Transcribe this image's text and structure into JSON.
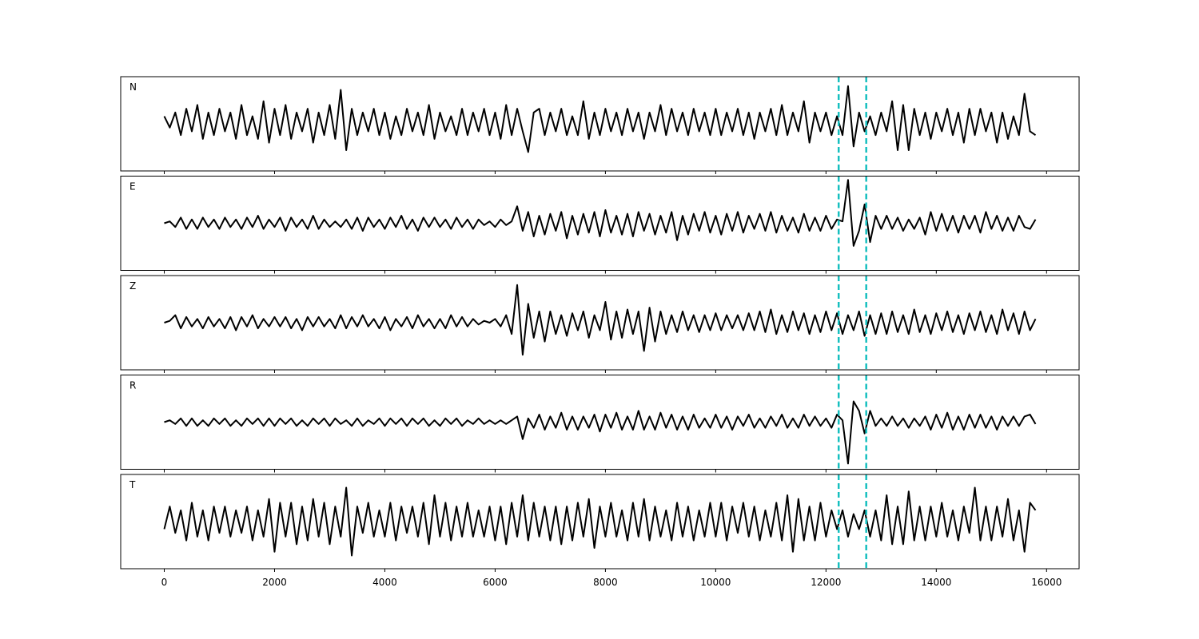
{
  "chart_data": {
    "type": "line",
    "x": [
      0,
      100,
      200,
      300,
      400,
      500,
      600,
      700,
      800,
      900,
      1000,
      1100,
      1200,
      1300,
      1400,
      1500,
      1600,
      1700,
      1800,
      1900,
      2000,
      2100,
      2200,
      2300,
      2400,
      2500,
      2600,
      2700,
      2800,
      2900,
      3000,
      3100,
      3200,
      3300,
      3400,
      3500,
      3600,
      3700,
      3800,
      3900,
      4000,
      4100,
      4200,
      4300,
      4400,
      4500,
      4600,
      4700,
      4800,
      4900,
      5000,
      5100,
      5200,
      5300,
      5400,
      5500,
      5600,
      5700,
      5800,
      5900,
      6000,
      6100,
      6200,
      6300,
      6400,
      6500,
      6600,
      6700,
      6800,
      6900,
      7000,
      7100,
      7200,
      7300,
      7400,
      7500,
      7600,
      7700,
      7800,
      7900,
      8000,
      8100,
      8200,
      8300,
      8400,
      8500,
      8600,
      8700,
      8800,
      8900,
      9000,
      9100,
      9200,
      9300,
      9400,
      9500,
      9600,
      9700,
      9800,
      9900,
      10000,
      10100,
      10200,
      10300,
      10400,
      10500,
      10600,
      10700,
      10800,
      10900,
      11000,
      11100,
      11200,
      11300,
      11400,
      11500,
      11600,
      11700,
      11800,
      11900,
      12000,
      12100,
      12200,
      12300,
      12400,
      12500,
      12600,
      12700,
      12800,
      12900,
      13000,
      13100,
      13200,
      13300,
      13400,
      13500,
      13600,
      13700,
      13800,
      13900,
      14000,
      14100,
      14200,
      14300,
      14400,
      14500,
      14600,
      14700,
      14800,
      14900,
      15000,
      15100,
      15200,
      15300,
      15400,
      15500,
      15600,
      15700,
      15800
    ],
    "xlim": [
      -790,
      16590
    ],
    "xticks": [
      0,
      2000,
      4000,
      6000,
      8000,
      10000,
      12000,
      14000,
      16000
    ],
    "ylim": [
      -1.25,
      1.25
    ],
    "series": [
      {
        "name": "N",
        "color": "#000000",
        "values": [
          0.2,
          -0.1,
          0.3,
          -0.3,
          0.4,
          -0.2,
          0.5,
          -0.4,
          0.3,
          -0.3,
          0.4,
          -0.2,
          0.3,
          -0.4,
          0.5,
          -0.3,
          0.2,
          -0.4,
          0.6,
          -0.5,
          0.4,
          -0.3,
          0.5,
          -0.4,
          0.3,
          -0.2,
          0.4,
          -0.5,
          0.3,
          -0.3,
          0.5,
          -0.4,
          0.9,
          -0.7,
          0.4,
          -0.3,
          0.3,
          -0.2,
          0.4,
          -0.3,
          0.3,
          -0.4,
          0.2,
          -0.3,
          0.4,
          -0.2,
          0.3,
          -0.3,
          0.5,
          -0.4,
          0.3,
          -0.2,
          0.2,
          -0.3,
          0.4,
          -0.3,
          0.3,
          -0.2,
          0.4,
          -0.3,
          0.3,
          -0.4,
          0.5,
          -0.3,
          0.4,
          -0.2,
          -0.75,
          0.3,
          0.4,
          -0.3,
          0.3,
          -0.2,
          0.4,
          -0.3,
          0.2,
          -0.3,
          0.6,
          -0.4,
          0.3,
          -0.3,
          0.4,
          -0.2,
          0.3,
          -0.3,
          0.4,
          -0.2,
          0.3,
          -0.4,
          0.3,
          -0.2,
          0.5,
          -0.3,
          0.4,
          -0.2,
          0.3,
          -0.3,
          0.4,
          -0.2,
          0.3,
          -0.3,
          0.4,
          -0.3,
          0.3,
          -0.2,
          0.4,
          -0.3,
          0.3,
          -0.4,
          0.3,
          -0.2,
          0.4,
          -0.3,
          0.5,
          -0.3,
          0.3,
          -0.2,
          0.6,
          -0.5,
          0.3,
          -0.2,
          0.3,
          -0.3,
          0.2,
          -0.3,
          1.0,
          -0.6,
          0.3,
          -0.2,
          0.2,
          -0.3,
          0.3,
          -0.2,
          0.6,
          -0.7,
          0.5,
          -0.7,
          0.4,
          -0.3,
          0.3,
          -0.4,
          0.3,
          -0.2,
          0.4,
          -0.3,
          0.3,
          -0.5,
          0.4,
          -0.3,
          0.4,
          -0.2,
          0.3,
          -0.5,
          0.3,
          -0.4,
          0.2,
          -0.3,
          0.8,
          -0.2,
          -0.3
        ]
      },
      {
        "name": "E",
        "color": "#000000",
        "values": [
          0,
          0.05,
          -0.1,
          0.15,
          -0.15,
          0.1,
          -0.15,
          0.15,
          -0.1,
          0.1,
          -0.15,
          0.15,
          -0.1,
          0.1,
          -0.15,
          0.15,
          -0.1,
          0.2,
          -0.15,
          0.1,
          -0.1,
          0.15,
          -0.2,
          0.15,
          -0.1,
          0.1,
          -0.15,
          0.2,
          -0.15,
          0.1,
          -0.1,
          0.05,
          -0.1,
          0.1,
          -0.15,
          0.15,
          -0.2,
          0.15,
          -0.1,
          0.1,
          -0.15,
          0.15,
          -0.1,
          0.2,
          -0.15,
          0.1,
          -0.2,
          0.15,
          -0.1,
          0.15,
          -0.1,
          0.1,
          -0.15,
          0.15,
          -0.1,
          0.1,
          -0.15,
          0.1,
          -0.05,
          0.05,
          -0.1,
          0.1,
          -0.05,
          0.05,
          0.45,
          -0.2,
          0.3,
          -0.35,
          0.2,
          -0.3,
          0.25,
          -0.2,
          0.3,
          -0.4,
          0.2,
          -0.3,
          0.25,
          -0.25,
          0.3,
          -0.35,
          0.35,
          -0.25,
          0.2,
          -0.3,
          0.25,
          -0.35,
          0.3,
          -0.2,
          0.25,
          -0.3,
          0.2,
          -0.25,
          0.3,
          -0.45,
          0.2,
          -0.3,
          0.25,
          -0.2,
          0.3,
          -0.25,
          0.2,
          -0.3,
          0.25,
          -0.2,
          0.3,
          -0.25,
          0.2,
          -0.15,
          0.25,
          -0.2,
          0.3,
          -0.25,
          0.2,
          -0.2,
          0.15,
          -0.25,
          0.25,
          -0.2,
          0.15,
          -0.2,
          0.2,
          -0.15,
          0.1,
          0.05,
          1.15,
          -0.6,
          -0.2,
          0.5,
          -0.5,
          0.2,
          -0.15,
          0.2,
          -0.15,
          0.15,
          -0.2,
          0.1,
          -0.15,
          0.15,
          -0.3,
          0.3,
          -0.2,
          0.25,
          -0.2,
          0.2,
          -0.25,
          0.2,
          -0.15,
          0.2,
          -0.25,
          0.3,
          -0.15,
          0.2,
          -0.2,
          0.15,
          -0.2,
          0.2,
          -0.1,
          -0.15,
          0.1
        ]
      },
      {
        "name": "Z",
        "color": "#000000",
        "values": [
          0,
          0.05,
          0.2,
          -0.15,
          0.15,
          -0.1,
          0.1,
          -0.15,
          0.15,
          -0.1,
          0.1,
          -0.15,
          0.15,
          -0.2,
          0.15,
          -0.1,
          0.2,
          -0.15,
          0.1,
          -0.1,
          0.15,
          -0.1,
          0.15,
          -0.15,
          0.1,
          -0.2,
          0.15,
          -0.1,
          0.15,
          -0.1,
          0.1,
          -0.15,
          0.2,
          -0.15,
          0.15,
          -0.1,
          0.2,
          -0.1,
          0.1,
          -0.15,
          0.15,
          -0.2,
          0.1,
          -0.1,
          0.15,
          -0.15,
          0.2,
          -0.1,
          0.1,
          -0.15,
          0.1,
          -0.15,
          0.2,
          -0.1,
          0.15,
          -0.1,
          0.1,
          -0.05,
          0.05,
          0.0,
          0.1,
          -0.1,
          0.2,
          -0.3,
          1.0,
          -0.85,
          0.5,
          -0.4,
          0.3,
          -0.5,
          0.3,
          -0.3,
          0.2,
          -0.35,
          0.25,
          -0.2,
          0.3,
          -0.4,
          0.2,
          -0.2,
          0.55,
          -0.45,
          0.3,
          -0.4,
          0.35,
          -0.3,
          0.3,
          -0.75,
          0.4,
          -0.5,
          0.3,
          -0.3,
          0.2,
          -0.25,
          0.3,
          -0.2,
          0.2,
          -0.25,
          0.2,
          -0.2,
          0.25,
          -0.2,
          0.2,
          -0.15,
          0.2,
          -0.2,
          0.25,
          -0.2,
          0.3,
          -0.25,
          0.35,
          -0.3,
          0.2,
          -0.25,
          0.3,
          -0.2,
          0.25,
          -0.3,
          0.2,
          -0.25,
          0.3,
          -0.2,
          0.25,
          -0.3,
          0.2,
          -0.2,
          0.3,
          -0.35,
          0.2,
          -0.3,
          0.25,
          -0.3,
          0.3,
          -0.25,
          0.2,
          -0.3,
          0.35,
          -0.25,
          0.2,
          -0.3,
          0.25,
          -0.2,
          0.3,
          -0.25,
          0.2,
          -0.3,
          0.25,
          -0.2,
          0.3,
          -0.25,
          0.2,
          -0.3,
          0.35,
          -0.2,
          0.25,
          -0.3,
          0.3,
          -0.2,
          0.1
        ]
      },
      {
        "name": "R",
        "color": "#000000",
        "values": [
          0,
          0.05,
          -0.05,
          0.1,
          -0.1,
          0.1,
          -0.1,
          0.05,
          -0.1,
          0.1,
          -0.05,
          0.1,
          -0.1,
          0.05,
          -0.1,
          0.1,
          -0.05,
          0.1,
          -0.1,
          0.1,
          -0.1,
          0.1,
          -0.05,
          0.1,
          -0.1,
          0.05,
          -0.1,
          0.1,
          -0.05,
          0.1,
          -0.1,
          0.1,
          -0.05,
          0.05,
          -0.1,
          0.1,
          -0.1,
          0.05,
          -0.05,
          0.1,
          -0.1,
          0.1,
          -0.05,
          0.1,
          -0.1,
          0.1,
          -0.05,
          0.1,
          -0.1,
          0.05,
          -0.1,
          0.1,
          -0.05,
          0.1,
          -0.1,
          0.05,
          -0.05,
          0.1,
          -0.05,
          0.05,
          -0.05,
          0.05,
          -0.05,
          0.05,
          0.15,
          -0.45,
          0.1,
          -0.15,
          0.2,
          -0.2,
          0.15,
          -0.15,
          0.25,
          -0.2,
          0.15,
          -0.2,
          0.15,
          -0.15,
          0.2,
          -0.25,
          0.2,
          -0.15,
          0.25,
          -0.2,
          0.15,
          -0.2,
          0.3,
          -0.2,
          0.15,
          -0.2,
          0.25,
          -0.15,
          0.2,
          -0.2,
          0.15,
          -0.2,
          0.2,
          -0.15,
          0.1,
          -0.15,
          0.2,
          -0.15,
          0.15,
          -0.2,
          0.15,
          -0.1,
          0.2,
          -0.15,
          0.1,
          -0.15,
          0.15,
          -0.1,
          0.2,
          -0.15,
          0.1,
          -0.15,
          0.2,
          -0.1,
          0.15,
          -0.1,
          0.1,
          -0.15,
          0.2,
          0.05,
          -1.1,
          0.55,
          0.3,
          -0.3,
          0.3,
          -0.1,
          0.1,
          -0.1,
          0.15,
          -0.1,
          0.1,
          -0.15,
          0.1,
          -0.1,
          0.15,
          -0.2,
          0.2,
          -0.15,
          0.25,
          -0.2,
          0.15,
          -0.2,
          0.2,
          -0.15,
          0.2,
          -0.15,
          0.15,
          -0.2,
          0.15,
          -0.1,
          0.15,
          -0.1,
          0.15,
          0.2,
          -0.05
        ]
      },
      {
        "name": "T",
        "color": "#000000",
        "values": [
          -0.2,
          0.4,
          -0.3,
          0.3,
          -0.5,
          0.5,
          -0.4,
          0.3,
          -0.5,
          0.4,
          -0.3,
          0.4,
          -0.4,
          0.3,
          -0.3,
          0.4,
          -0.5,
          0.3,
          -0.4,
          0.6,
          -0.8,
          0.5,
          -0.4,
          0.5,
          -0.6,
          0.4,
          -0.5,
          0.6,
          -0.4,
          0.5,
          -0.6,
          0.4,
          -0.4,
          0.9,
          -0.9,
          0.4,
          -0.3,
          0.5,
          -0.4,
          0.3,
          -0.4,
          0.5,
          -0.5,
          0.4,
          -0.3,
          0.4,
          -0.4,
          0.5,
          -0.6,
          0.7,
          -0.4,
          0.5,
          -0.5,
          0.4,
          -0.4,
          0.5,
          -0.4,
          0.3,
          -0.4,
          0.4,
          -0.5,
          0.4,
          -0.6,
          0.5,
          -0.4,
          0.7,
          -0.5,
          0.5,
          -0.4,
          0.4,
          -0.5,
          0.4,
          -0.6,
          0.4,
          -0.5,
          0.5,
          -0.4,
          0.6,
          -0.7,
          0.4,
          -0.4,
          0.5,
          -0.4,
          0.3,
          -0.5,
          0.5,
          -0.4,
          0.6,
          -0.5,
          0.4,
          -0.4,
          0.3,
          -0.5,
          0.5,
          -0.4,
          0.4,
          -0.5,
          0.3,
          -0.4,
          0.5,
          -0.4,
          0.5,
          -0.5,
          0.4,
          -0.3,
          0.5,
          -0.4,
          0.4,
          -0.5,
          0.3,
          -0.4,
          0.5,
          -0.5,
          0.7,
          -0.8,
          0.6,
          -0.5,
          0.4,
          -0.5,
          0.5,
          -0.4,
          0.3,
          -0.2,
          0.3,
          -0.4,
          0.2,
          -0.2,
          0.3,
          -0.4,
          0.3,
          -0.5,
          0.7,
          -0.6,
          0.4,
          -0.6,
          0.8,
          -0.5,
          0.4,
          -0.5,
          0.4,
          -0.4,
          0.5,
          -0.4,
          0.3,
          -0.5,
          0.4,
          -0.3,
          0.9,
          -0.5,
          0.4,
          -0.5,
          0.4,
          -0.4,
          0.6,
          -0.5,
          0.3,
          -0.8,
          0.5,
          0.3
        ]
      }
    ],
    "vlines": {
      "values": [
        12230,
        12730
      ],
      "color": "#17bfbf",
      "style": "dashed"
    }
  }
}
